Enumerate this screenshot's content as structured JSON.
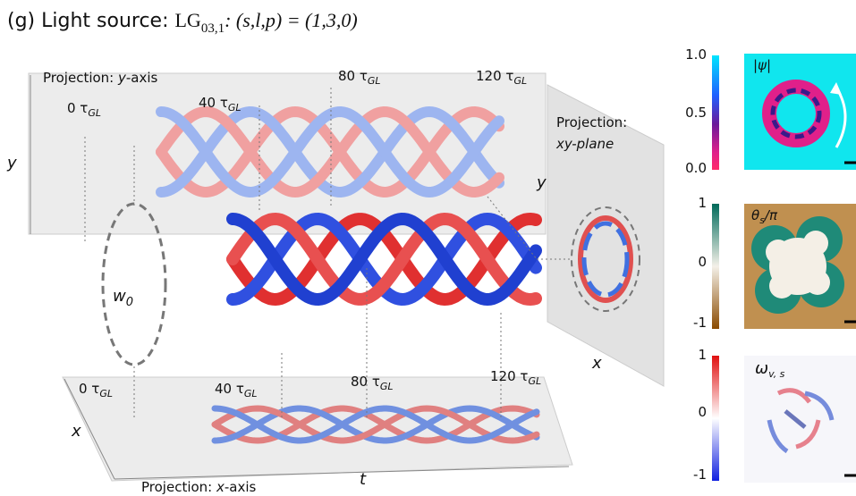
{
  "title": {
    "prefix": "(g) Light source: ",
    "mode": "LG",
    "mode_sub": "03,1",
    "params": ":  (s,l,p) = (1,3,0)"
  },
  "top_projection": {
    "label": "Projection: ",
    "axis": "y",
    "suffix": "-axis",
    "times": [
      {
        "text": "0 τ",
        "sub": "GL"
      },
      {
        "text": "40 τ",
        "sub": "GL"
      },
      {
        "text": "80 τ",
        "sub": "GL"
      },
      {
        "text": "120 τ",
        "sub": "GL"
      }
    ],
    "y_label": "y"
  },
  "side_projection": {
    "line1": "Projection:",
    "line2": "xy-plane",
    "y_label": "y",
    "x_label": "x"
  },
  "bottom_projection": {
    "label": "Projection: ",
    "axis": "x",
    "suffix": "-axis",
    "times": [
      {
        "text": "0 τ",
        "sub": "GL"
      },
      {
        "text": "40 τ",
        "sub": "GL"
      },
      {
        "text": "80 τ",
        "sub": "GL"
      },
      {
        "text": "120 τ",
        "sub": "GL"
      }
    ],
    "x_label": "x",
    "t_label": "t"
  },
  "waist": {
    "text": "w",
    "sub": "0"
  },
  "panels": [
    {
      "label": "|ψ|",
      "ticks": [
        "1.0",
        "0.5",
        "0.0"
      ]
    },
    {
      "label": "θ",
      "label_sub": "s",
      "label_tail": "/π",
      "ticks": [
        "1",
        "0",
        "-1"
      ]
    },
    {
      "label": "ω",
      "label_sub": "v, s",
      "ticks": [
        "1",
        "0",
        "-1"
      ]
    }
  ]
}
